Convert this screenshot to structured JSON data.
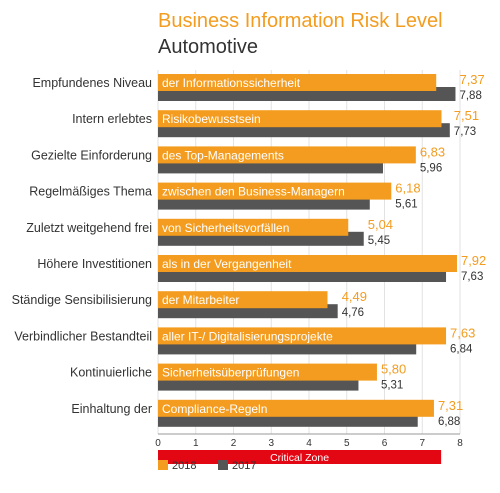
{
  "chart_data": {
    "type": "bar",
    "orientation": "horizontal",
    "title": "Business Information Risk Level",
    "subtitle": "Automotive",
    "categories": [
      "Empfundenes Niveau",
      "Intern erlebtes",
      "Gezielte Einforderung",
      "Regelmäßiges Thema",
      "Zuletzt weitgehend frei",
      "Höhere Investitionen",
      "Ständige Sensibilisierung",
      "Verbindlicher Bestandteil",
      "Kontinuierliche",
      "Einhaltung der"
    ],
    "bar_texts": [
      "der Informationssicherheit",
      "Risikobewusstsein",
      "des Top-Managements",
      "zwischen den Business-Managern",
      "von Sicherheitsvorfällen",
      "als in der Vergangenheit",
      "der Mitarbeiter",
      "aller IT-/ Digitalisierungsprojekte",
      "Sicherheitsüberprüfungen",
      "Compliance-Regeln"
    ],
    "series": [
      {
        "name": "2018",
        "color": "#f39c1f",
        "values": [
          7.37,
          7.51,
          6.83,
          6.18,
          5.04,
          7.92,
          4.49,
          7.63,
          5.8,
          7.31
        ],
        "labels": [
          "7,37",
          "7,51",
          "6,83",
          "6,18",
          "5,04",
          "7,92",
          "4,49",
          "7,63",
          "5,80",
          "7,31"
        ]
      },
      {
        "name": "2017",
        "color": "#555555",
        "values": [
          7.88,
          7.73,
          5.96,
          5.61,
          5.45,
          7.63,
          4.76,
          6.84,
          5.31,
          6.88
        ],
        "labels": [
          "7,88",
          "7,73",
          "5,96",
          "5,61",
          "5,45",
          "7,63",
          "4,76",
          "6,84",
          "5,31",
          "6,88"
        ]
      }
    ],
    "xlim": [
      0,
      8
    ],
    "ticks": [
      "0",
      "1",
      "2",
      "3",
      "4",
      "5",
      "6",
      "7",
      "8"
    ],
    "critical_zone": {
      "label": "Critical Zone",
      "from": 0,
      "to": 7.5,
      "color": "#e30613"
    },
    "grid": true,
    "legend_position": "bottom-left"
  }
}
